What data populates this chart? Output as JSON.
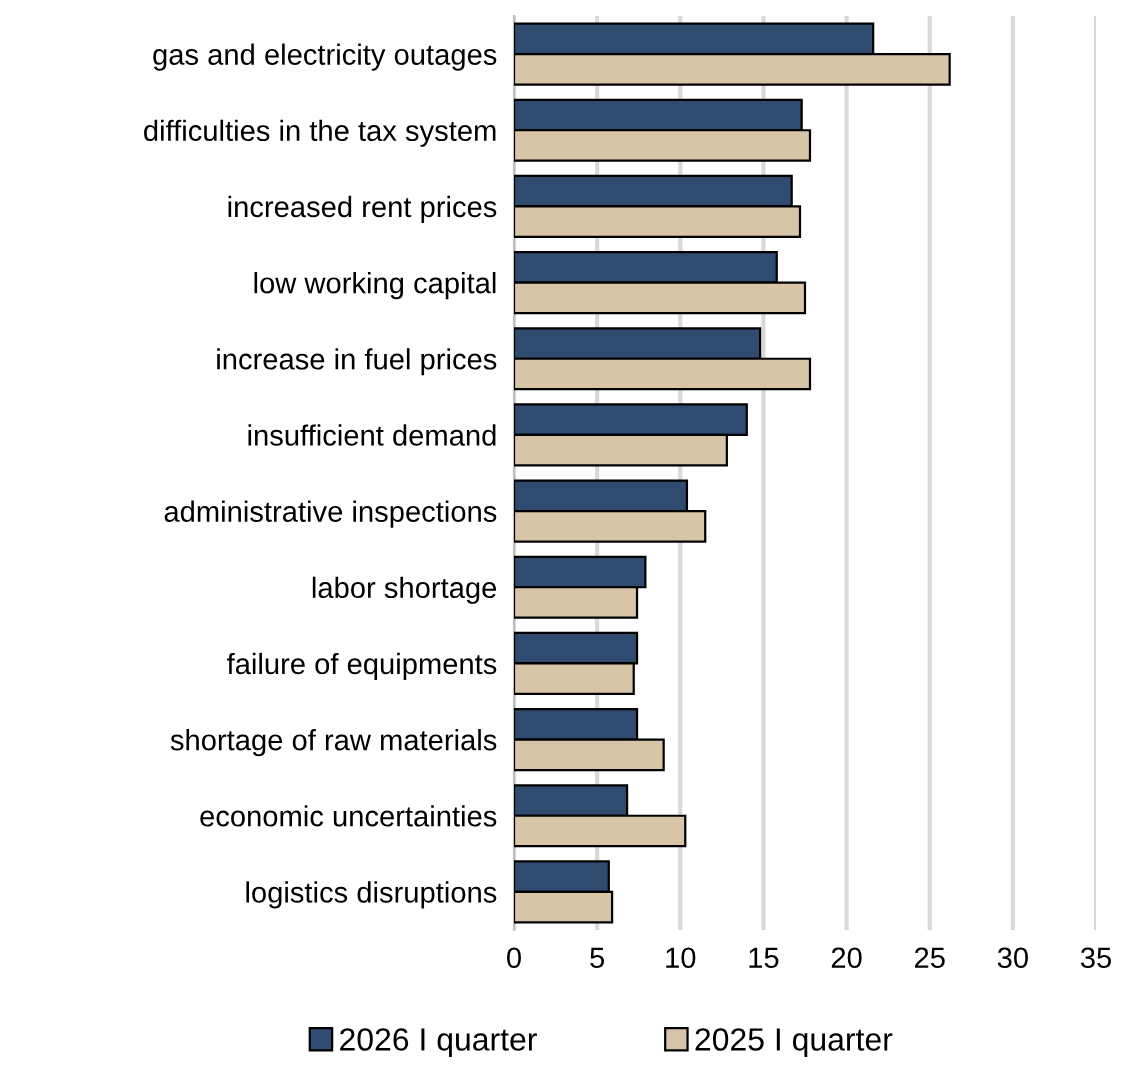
{
  "chart_data": {
    "type": "bar",
    "orientation": "horizontal",
    "categories": [
      "gas and electricity outages",
      "difficulties in the tax system",
      "increased rent prices",
      "low working capital",
      "increase in fuel prices",
      "insufficient demand",
      "administrative inspections",
      "labor shortage",
      "failure of equipments",
      "shortage of raw materials",
      "economic uncertainties",
      "logistics disruptions"
    ],
    "series": [
      {
        "name": "2026 I quarter",
        "color": "#2f4b6f",
        "values": [
          21.6,
          17.3,
          16.7,
          15.8,
          14.8,
          14.0,
          10.4,
          7.9,
          7.4,
          7.4,
          6.8,
          5.7
        ]
      },
      {
        "name": "2025 I quarter",
        "color": "#d8c5a8",
        "values": [
          26.2,
          17.8,
          17.2,
          17.5,
          17.8,
          12.8,
          11.5,
          7.4,
          7.2,
          9.0,
          10.3,
          5.9
        ]
      }
    ],
    "xlim": [
      0,
      35
    ],
    "xticks": [
      0,
      5,
      10,
      15,
      20,
      25,
      30,
      35
    ],
    "grid": "x",
    "legend": "bottom"
  }
}
